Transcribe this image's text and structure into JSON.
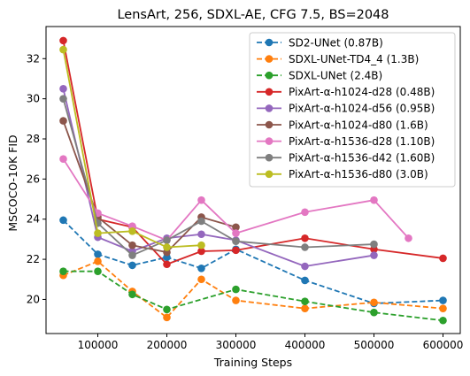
{
  "chart_data": {
    "type": "line",
    "title": "LensArt, 256, SDXL-AE, CFG 7.5, BS=2048",
    "xlabel": "Training Steps",
    "ylabel": "MSCOCO-10K FID",
    "xlim": [
      25000,
      625000
    ],
    "ylim": [
      18.3,
      33.6
    ],
    "xticks": [
      100000,
      200000,
      300000,
      400000,
      500000,
      600000
    ],
    "yticks": [
      20,
      22,
      24,
      26,
      28,
      30,
      32
    ],
    "grid": false,
    "legend_position": "top-right",
    "series": [
      {
        "name": "SD2-UNet (0.87B)",
        "color": "#1f77b4",
        "linestyle": "dashed",
        "x": [
          50000,
          100000,
          150000,
          200000,
          250000,
          300000,
          400000,
          500000,
          600000
        ],
        "y": [
          23.95,
          22.25,
          21.7,
          22.1,
          21.55,
          22.5,
          20.95,
          19.8,
          19.95
        ]
      },
      {
        "name": "SDXL-UNet-TD4_4 (1.3B)",
        "color": "#ff7f0e",
        "linestyle": "dashed",
        "x": [
          50000,
          100000,
          150000,
          200000,
          250000,
          300000,
          400000,
          500000,
          600000
        ],
        "y": [
          21.2,
          21.9,
          20.4,
          19.1,
          21.0,
          19.95,
          19.55,
          19.85,
          19.55
        ]
      },
      {
        "name": "SDXL-UNet (2.4B)",
        "color": "#2ca02c",
        "linestyle": "dashed",
        "x": [
          50000,
          100000,
          150000,
          200000,
          300000,
          400000,
          500000,
          600000
        ],
        "y": [
          21.4,
          21.4,
          20.25,
          19.5,
          20.5,
          19.9,
          19.35,
          18.95
        ]
      },
      {
        "name": "PixArt-α-h1024-d28 (0.48B)",
        "color": "#d62728",
        "linestyle": "solid",
        "x": [
          50000,
          100000,
          150000,
          200000,
          250000,
          300000,
          400000,
          500000,
          600000
        ],
        "y": [
          32.9,
          24.0,
          23.6,
          21.75,
          22.4,
          22.45,
          23.05,
          22.5,
          22.05
        ]
      },
      {
        "name": "PixArt-α-h1024-d56 (0.95B)",
        "color": "#9467bd",
        "linestyle": "solid",
        "x": [
          50000,
          100000,
          150000,
          200000,
          250000,
          300000,
          400000,
          500000
        ],
        "y": [
          30.5,
          23.1,
          22.4,
          23.05,
          23.25,
          22.95,
          21.65,
          22.2
        ]
      },
      {
        "name": "PixArt-α-h1024-d80 (1.6B)",
        "color": "#8c564b",
        "linestyle": "solid",
        "x": [
          50000,
          100000,
          150000,
          200000,
          250000,
          300000
        ],
        "y": [
          28.9,
          24.1,
          22.7,
          22.35,
          24.1,
          23.6
        ]
      },
      {
        "name": "PixArt-α-h1536-d28 (1.10B)",
        "color": "#e377c2",
        "linestyle": "solid",
        "x": [
          50000,
          100000,
          150000,
          200000,
          250000,
          300000,
          400000,
          500000,
          550000
        ],
        "y": [
          27.0,
          24.3,
          23.65,
          22.95,
          24.95,
          23.3,
          24.35,
          24.95,
          23.05
        ]
      },
      {
        "name": "PixArt-α-h1536-d42 (1.60B)",
        "color": "#7f7f7f",
        "linestyle": "solid",
        "x": [
          50000,
          100000,
          150000,
          200000,
          250000,
          300000,
          400000,
          500000
        ],
        "y": [
          30.0,
          23.8,
          22.2,
          22.95,
          23.9,
          22.9,
          22.6,
          22.75
        ]
      },
      {
        "name": "PixArt-α-h1536-d80 (3.0B)",
        "color": "#bcbd22",
        "linestyle": "solid",
        "x": [
          50000,
          100000,
          150000,
          200000,
          250000
        ],
        "y": [
          32.45,
          23.3,
          23.4,
          22.6,
          22.7
        ]
      }
    ]
  }
}
